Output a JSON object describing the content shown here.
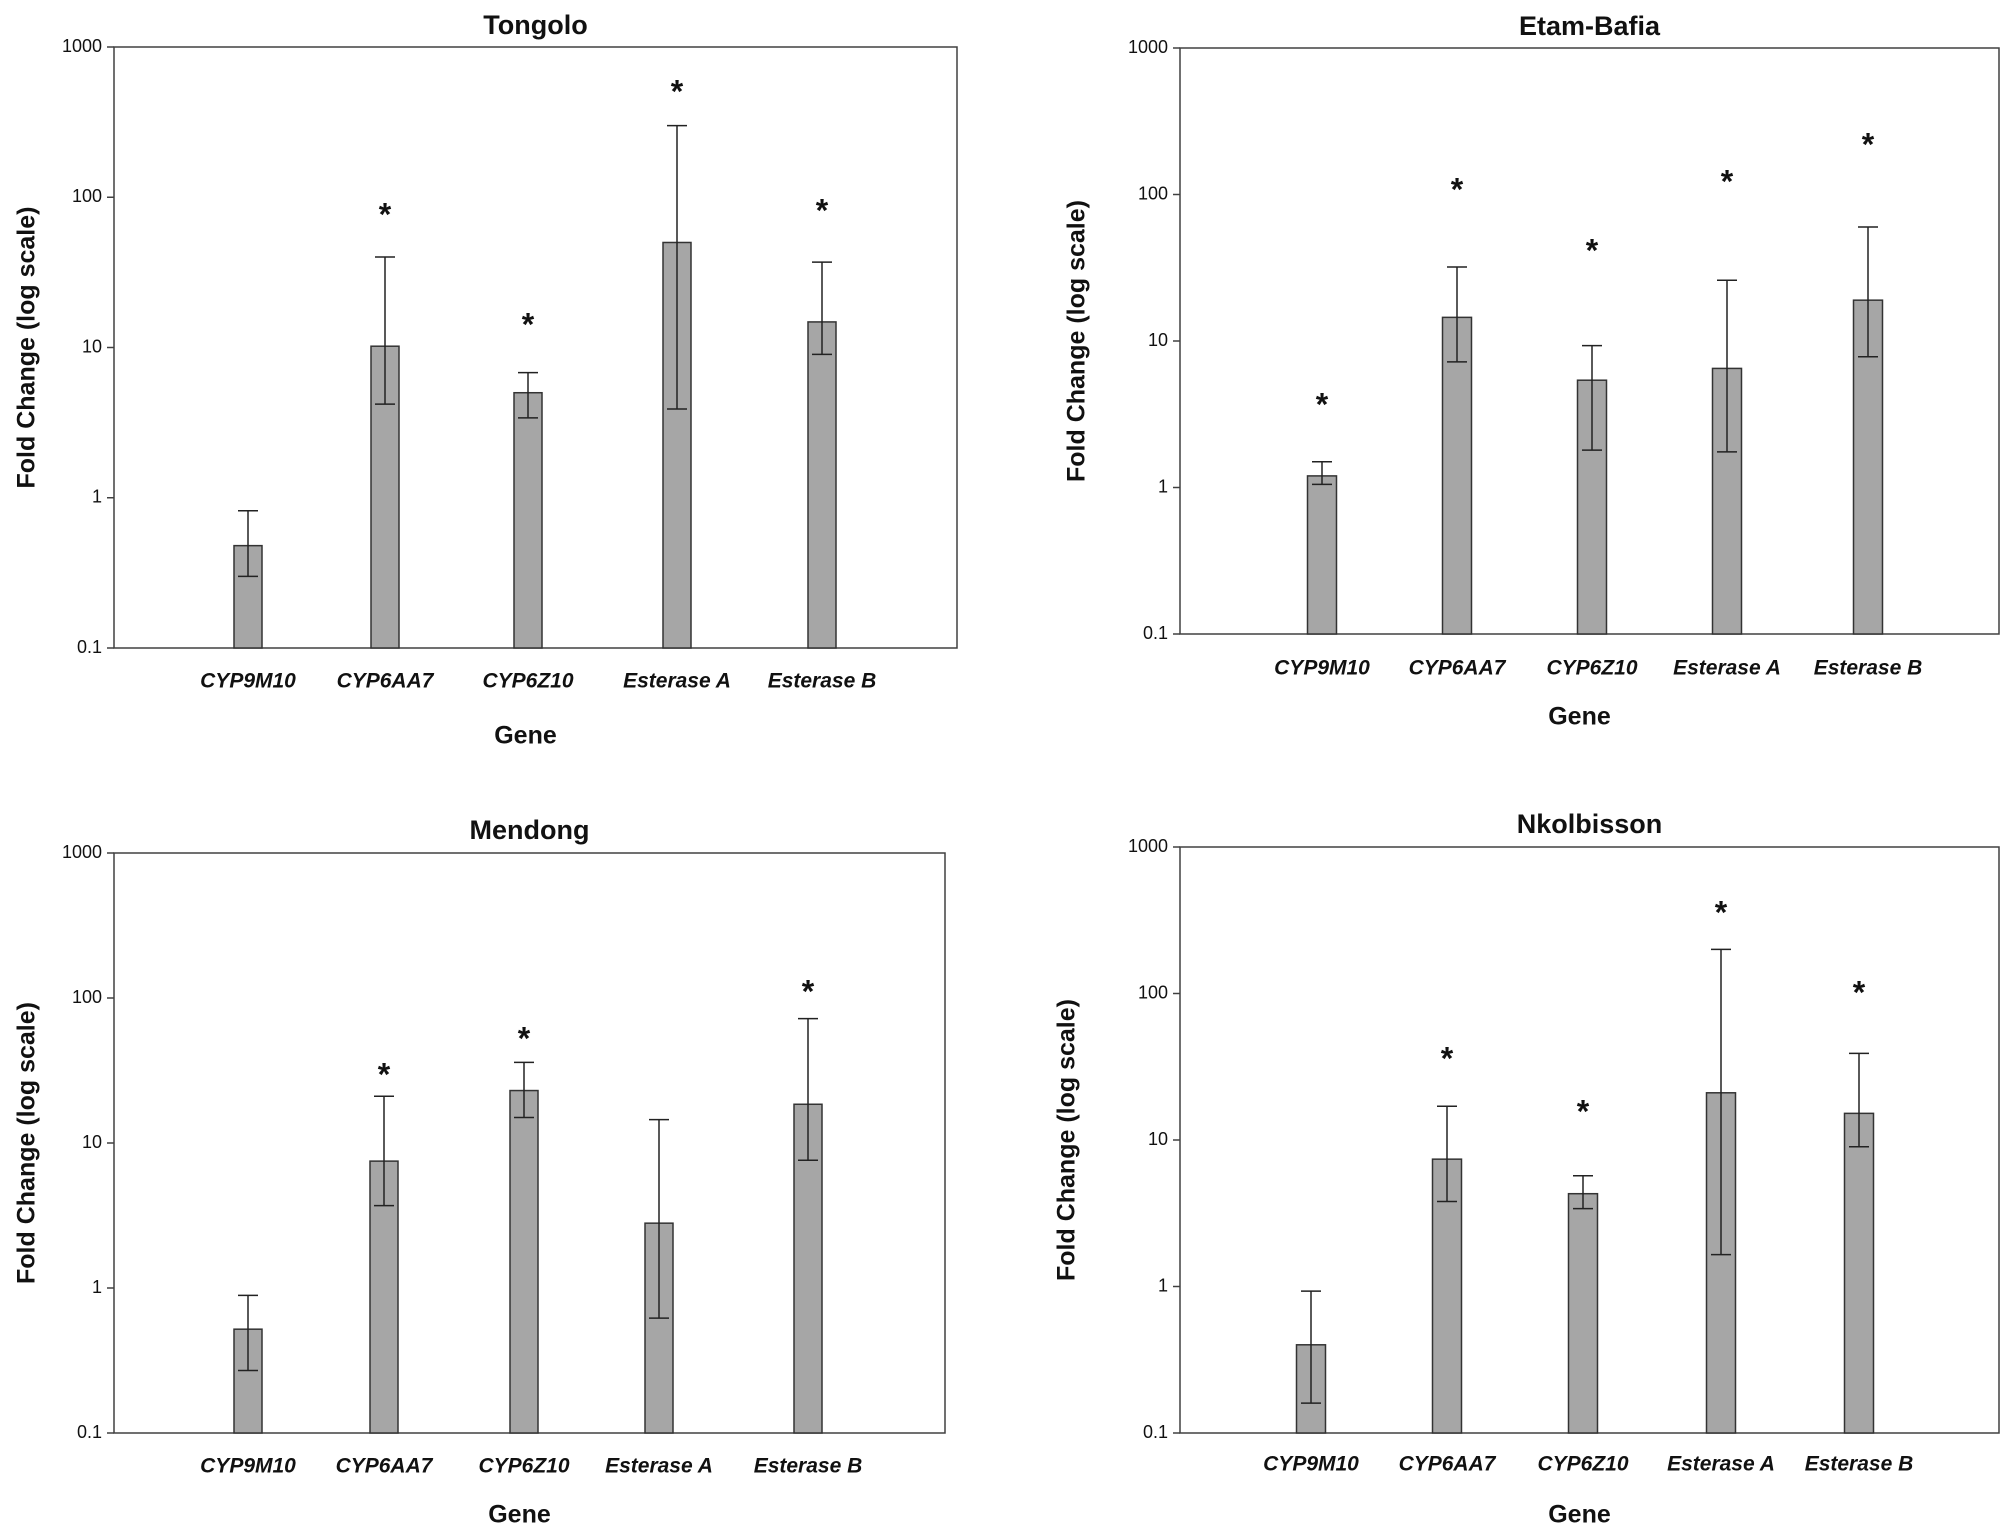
{
  "chart_data": [
    {
      "type": "bar",
      "title": "Tongolo",
      "xlabel": "Gene",
      "ylabel": "Fold Change (log scale)",
      "yscale": "log",
      "ylim": [
        0.1,
        1000
      ],
      "yticks": [
        0.1,
        1,
        10,
        100,
        1000
      ],
      "ytick_labels": [
        "0.1",
        "1",
        "10",
        "100",
        "1000"
      ],
      "categories": [
        "CYP9M10",
        "CYP6AA7",
        "CYP6Z10",
        "Esterase A",
        "Esterase B"
      ],
      "values": [
        0.48,
        10.2,
        5.0,
        50,
        14.8
      ],
      "error_low": [
        0.3,
        4.2,
        3.4,
        3.9,
        9.0
      ],
      "error_high": [
        0.82,
        40,
        6.8,
        300,
        37
      ],
      "significance": [
        "",
        "*",
        "*",
        "*",
        "*"
      ],
      "bar_color": "#a6a6a6",
      "grid": false,
      "legend": "none"
    },
    {
      "type": "bar",
      "title": "Etam-Bafia",
      "xlabel": "Gene",
      "ylabel": "Fold Change (log scale)",
      "yscale": "log",
      "ylim": [
        0.1,
        1000
      ],
      "yticks": [
        0.1,
        1,
        10,
        100,
        1000
      ],
      "ytick_labels": [
        "0.1",
        "1",
        "10",
        "100",
        "1000"
      ],
      "categories": [
        "CYP9M10",
        "CYP6AA7",
        "CYP6Z10",
        "Esterase A",
        "Esterase B"
      ],
      "values": [
        1.2,
        14.5,
        5.4,
        6.5,
        19
      ],
      "error_low": [
        1.05,
        7.2,
        1.8,
        1.75,
        7.8
      ],
      "error_high": [
        1.5,
        32,
        9.3,
        26,
        60
      ],
      "significance": [
        "*",
        "*",
        "*",
        "*",
        "*"
      ],
      "bar_color": "#a6a6a6",
      "grid": false,
      "legend": "none"
    },
    {
      "type": "bar",
      "title": "Mendong",
      "xlabel": "Gene",
      "ylabel": "Fold Change (log scale)",
      "yscale": "log",
      "ylim": [
        0.1,
        1000
      ],
      "yticks": [
        0.1,
        1,
        10,
        100,
        1000
      ],
      "ytick_labels": [
        "0.1",
        "1",
        "10",
        "100",
        "1000"
      ],
      "categories": [
        "CYP9M10",
        "CYP6AA7",
        "CYP6Z10",
        "Esterase A",
        "Esterase B"
      ],
      "values": [
        0.52,
        7.5,
        23,
        2.8,
        18.5
      ],
      "error_low": [
        0.27,
        3.7,
        15,
        0.62,
        7.6
      ],
      "error_high": [
        0.89,
        21,
        36,
        14.5,
        72
      ],
      "significance": [
        "",
        "*",
        "*",
        "",
        "*"
      ],
      "bar_color": "#a6a6a6",
      "grid": false,
      "legend": "none"
    },
    {
      "type": "bar",
      "title": "Nkolbisson",
      "xlabel": "Gene",
      "ylabel": "Fold Change (log scale)",
      "yscale": "log",
      "ylim": [
        0.1,
        1000
      ],
      "yticks": [
        0.1,
        1,
        10,
        100,
        1000
      ],
      "ytick_labels": [
        "0.1",
        "1",
        "10",
        "100",
        "1000"
      ],
      "categories": [
        "CYP9M10",
        "CYP6AA7",
        "CYP6Z10",
        "Esterase A",
        "Esterase B"
      ],
      "values": [
        0.4,
        7.4,
        4.3,
        21,
        15.2
      ],
      "error_low": [
        0.16,
        3.8,
        3.4,
        1.65,
        9.0
      ],
      "error_high": [
        0.93,
        17,
        5.7,
        200,
        39
      ],
      "significance": [
        "",
        "*",
        "*",
        "*",
        "*"
      ],
      "bar_color": "#a6a6a6",
      "grid": false,
      "legend": "none"
    }
  ]
}
